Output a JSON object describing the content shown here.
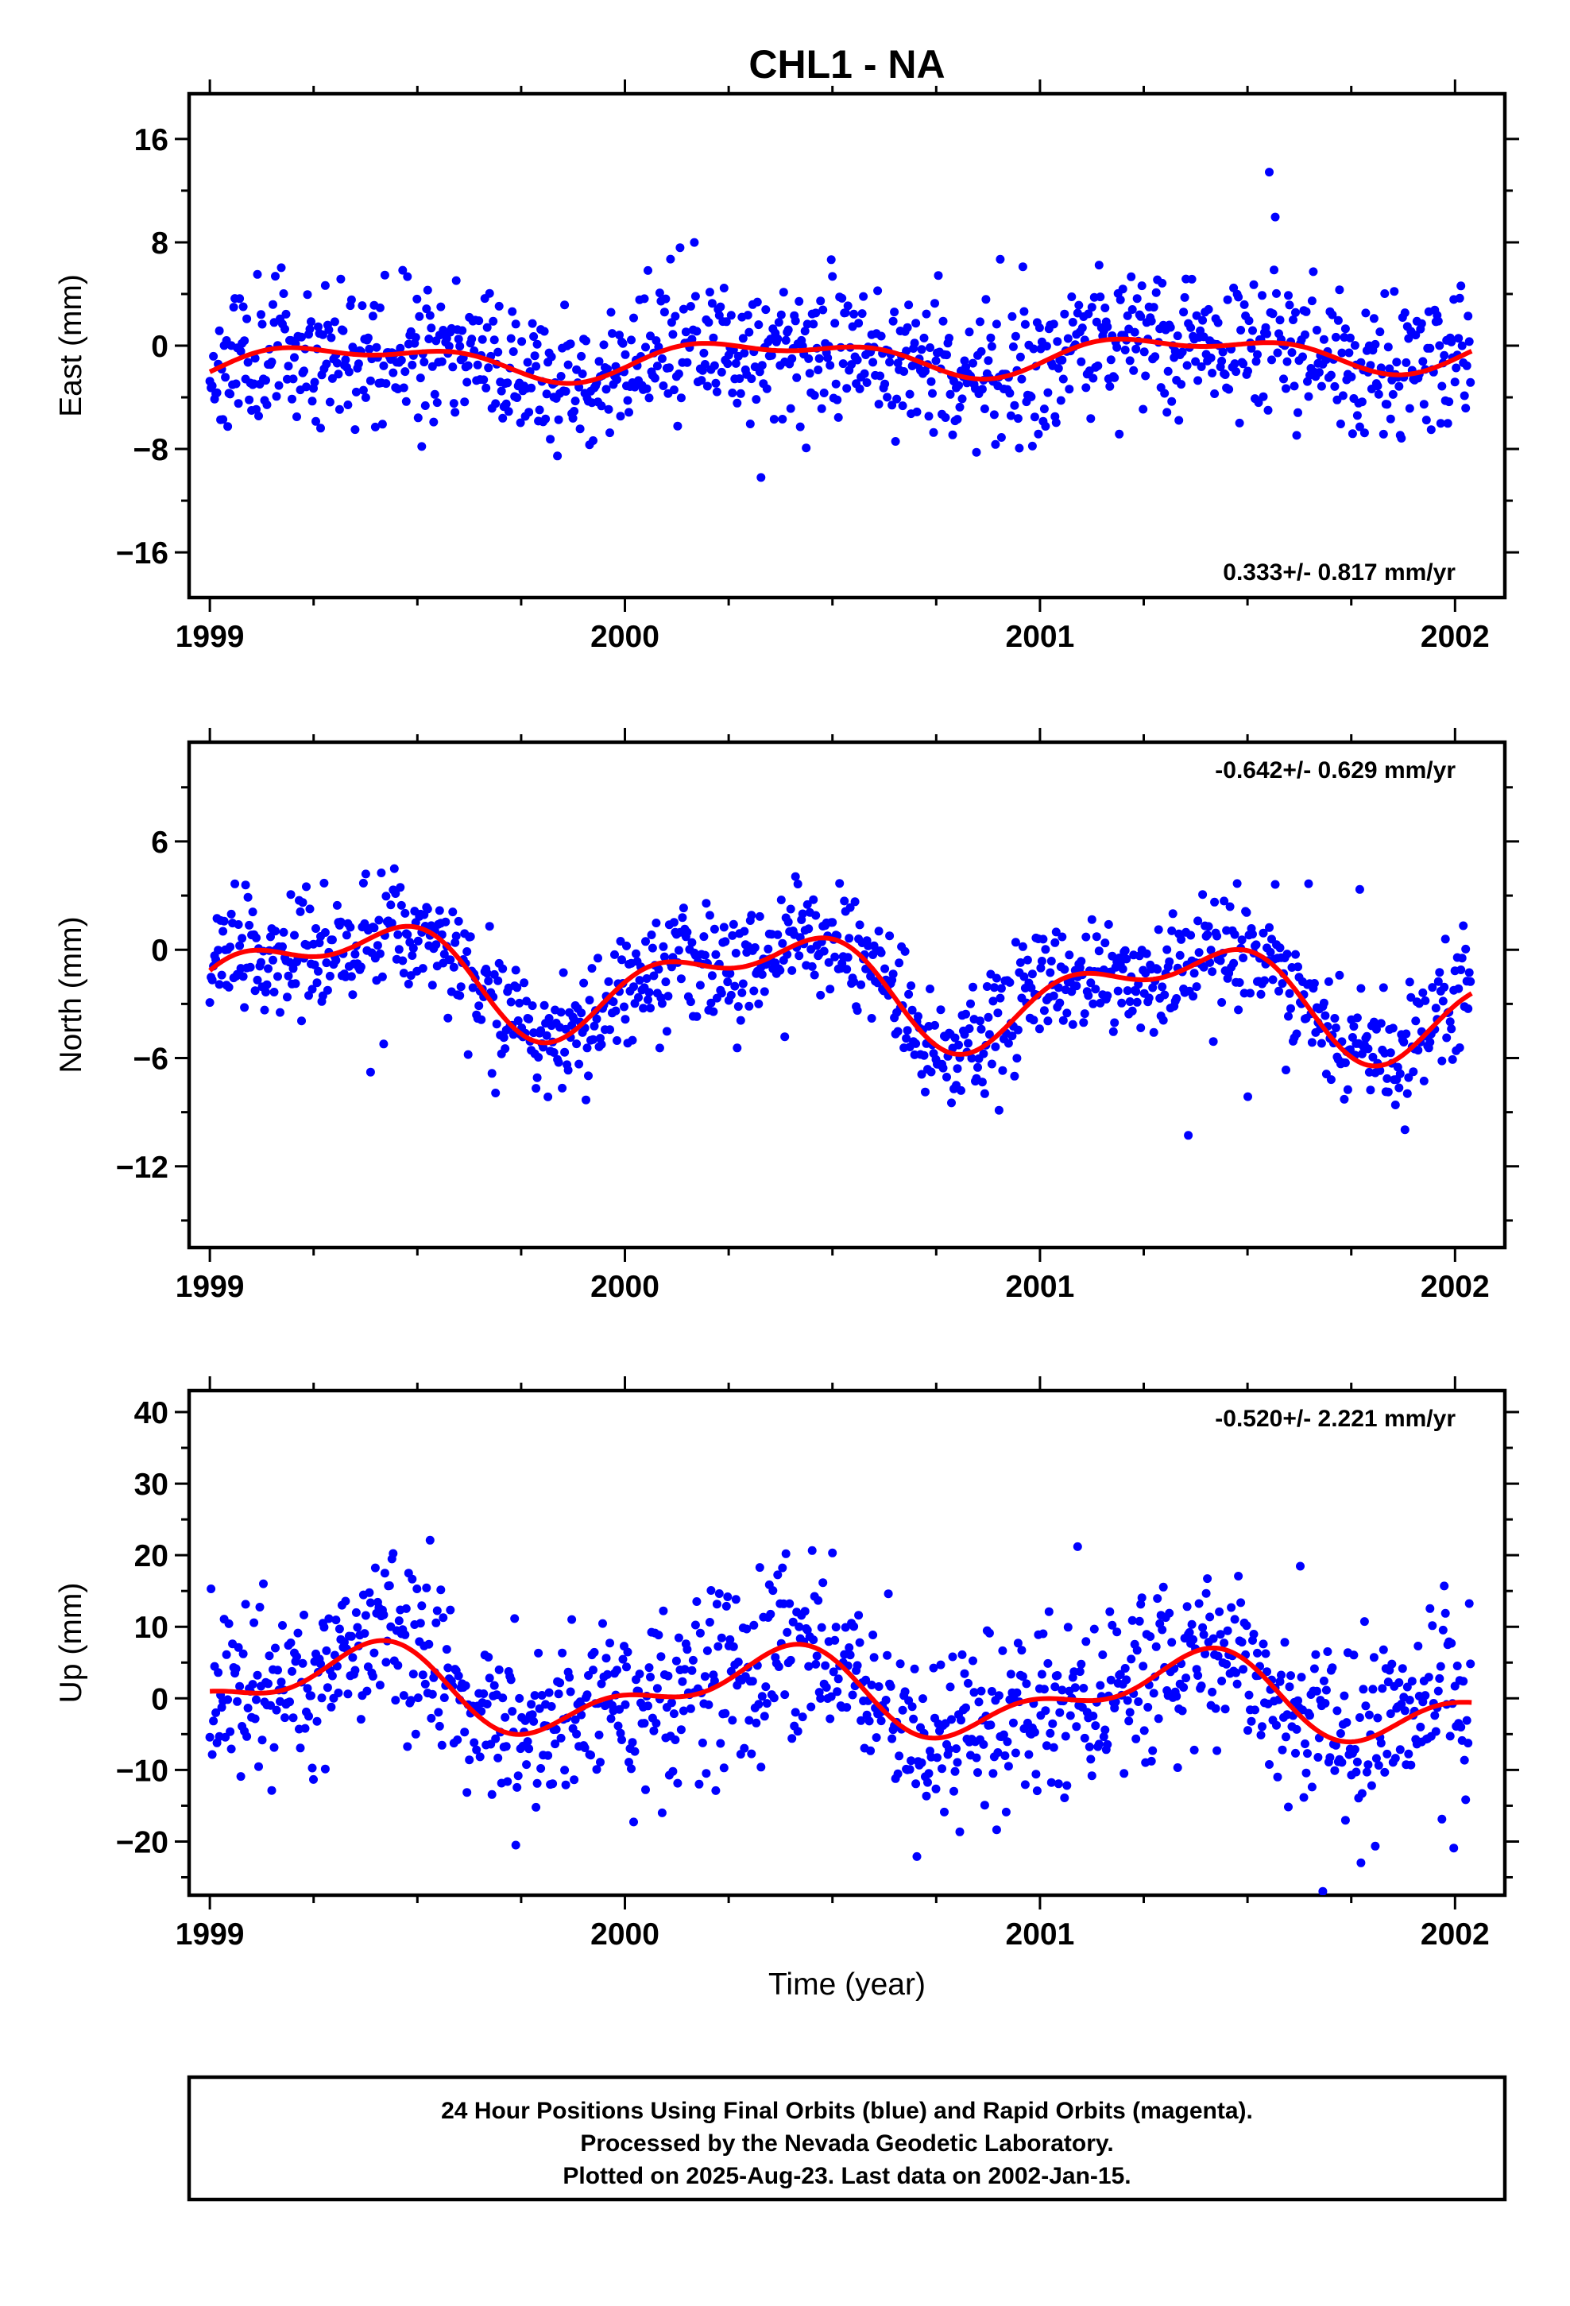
{
  "title": "CHL1 - NA",
  "xlabel": "Time (year)",
  "footer": {
    "line1": "24 Hour Positions Using Final Orbits (blue) and Rapid Orbits (magenta).",
    "line2": "Processed by the Nevada Geodetic Laboratory.",
    "line3": "Plotted on 2025-Aug-23. Last data on 2002-Jan-15."
  },
  "colors": {
    "final_orbits": "#0000ff",
    "fit": "#ff0000",
    "frame": "#000000"
  },
  "chart_data": [
    {
      "type": "scatter",
      "ylabel": "East (mm)",
      "rate": "0.333+/- 0.817 mm/yr",
      "xlim": [
        1998.95,
        2002.12
      ],
      "ylim": [
        -19.5,
        19.5
      ],
      "xticks": [
        "1999",
        "2000",
        "2001",
        "2002"
      ],
      "yticks": [
        -16,
        -8,
        0,
        8,
        16
      ],
      "points_count": 1060,
      "seasonal_amplitude": 1.5,
      "noise_sigma": 2.6,
      "fit_offset": -1.35,
      "fit_trend": 0.333,
      "seed": 11
    },
    {
      "type": "scatter",
      "ylabel": "North (mm)",
      "rate": "-0.642+/- 0.629 mm/yr",
      "xlim": [
        1998.95,
        2002.12
      ],
      "ylim": [
        -16.5,
        11.5
      ],
      "xticks": [
        "1999",
        "2000",
        "2001",
        "2002"
      ],
      "yticks": [
        -12,
        -6,
        0,
        6
      ],
      "points_count": 1060,
      "seasonal_amplitude": 3.0,
      "noise_sigma": 1.6,
      "fit_offset": -1.0,
      "fit_trend": -0.642,
      "seed": 23
    },
    {
      "type": "scatter",
      "ylabel": "Up (mm)",
      "rate": "-0.520+/- 2.221 mm/yr",
      "xlim": [
        1998.95,
        2002.12
      ],
      "ylim": [
        -27.5,
        43
      ],
      "xticks": [
        "1999",
        "2000",
        "2001",
        "2002"
      ],
      "yticks": [
        -20,
        -10,
        0,
        10,
        20,
        30,
        40
      ],
      "points_count": 1060,
      "seasonal_amplitude": 6.0,
      "noise_sigma": 5.8,
      "fit_offset": 1.5,
      "fit_trend": -0.52,
      "seed": 37
    }
  ]
}
